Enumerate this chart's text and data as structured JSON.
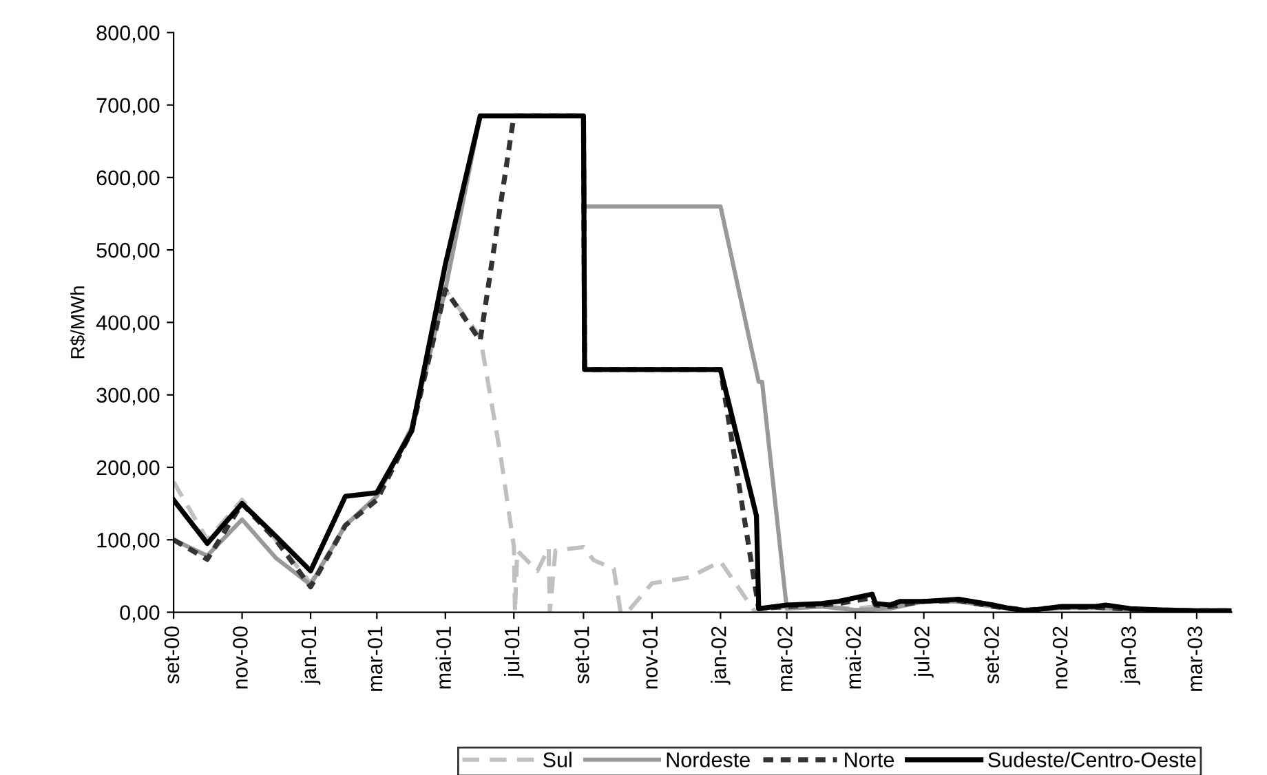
{
  "chart_data": {
    "type": "line",
    "ylabel": "R$/MWh",
    "xlim": [
      "2000-09-01",
      "2003-04-01"
    ],
    "ylim": [
      0,
      800
    ],
    "xticks": [
      {
        "value": "2000-09",
        "label": "set-00"
      },
      {
        "value": "2000-11",
        "label": "nov-00"
      },
      {
        "value": "2001-01",
        "label": "jan-01"
      },
      {
        "value": "2001-03",
        "label": "mar-01"
      },
      {
        "value": "2001-05",
        "label": "mai-01"
      },
      {
        "value": "2001-07",
        "label": "jul-01"
      },
      {
        "value": "2001-09",
        "label": "set-01"
      },
      {
        "value": "2001-11",
        "label": "nov-01"
      },
      {
        "value": "2002-01",
        "label": "jan-02"
      },
      {
        "value": "2002-03",
        "label": "mar-02"
      },
      {
        "value": "2002-05",
        "label": "mai-02"
      },
      {
        "value": "2002-07",
        "label": "jul-02"
      },
      {
        "value": "2002-09",
        "label": "set-02"
      },
      {
        "value": "2002-11",
        "label": "nov-02"
      },
      {
        "value": "2003-01",
        "label": "jan-03"
      },
      {
        "value": "2003-03",
        "label": "mar-03"
      }
    ],
    "yticks": [
      {
        "value": 0,
        "label": "0,00"
      },
      {
        "value": 100,
        "label": "100,00"
      },
      {
        "value": 200,
        "label": "200,00"
      },
      {
        "value": 300,
        "label": "300,00"
      },
      {
        "value": 400,
        "label": "400,00"
      },
      {
        "value": 500,
        "label": "500,00"
      },
      {
        "value": 600,
        "label": "600,00"
      },
      {
        "value": 700,
        "label": "700,00"
      },
      {
        "value": 800,
        "label": "800,00"
      }
    ],
    "grid": false,
    "legend": "bottom",
    "marker": "none",
    "series": [
      {
        "name": "Sul",
        "color": "#c0c0c0",
        "line_style": "dashed",
        "x": [
          "2000-09-01",
          "2000-10-01",
          "2000-11-01",
          "2000-12-01",
          "2001-01-01",
          "2001-02-01",
          "2001-03-01",
          "2001-04-01",
          "2001-05-01",
          "2001-06-01",
          "2001-06-19",
          "2001-07-01",
          "2001-07-02",
          "2001-07-04",
          "2001-07-22",
          "2001-08-01",
          "2001-08-02",
          "2001-08-07",
          "2001-09-01",
          "2001-09-10",
          "2001-09-28",
          "2001-10-04",
          "2001-10-10",
          "2001-11-01",
          "2001-12-04",
          "2002-01-01",
          "2002-02-01",
          "2002-03-01",
          "2002-04-01",
          "2002-05-01",
          "2002-06-01",
          "2002-07-01",
          "2002-08-01",
          "2002-09-01",
          "2002-10-01",
          "2002-11-01",
          "2002-12-01",
          "2003-01-01",
          "2003-02-01",
          "2003-03-01",
          "2003-04-01"
        ],
        "values": [
          180,
          100,
          155,
          100,
          40,
          120,
          160,
          250,
          445,
          380,
          218,
          91,
          0,
          85,
          57,
          89,
          0,
          85,
          90,
          72,
          60,
          0,
          0,
          40,
          48,
          70,
          0,
          8,
          8,
          5,
          10,
          15,
          15,
          8,
          3,
          6,
          6,
          4,
          3,
          2,
          2
        ]
      },
      {
        "name": "Nordeste",
        "color": "#999999",
        "line_style": "solid",
        "x": [
          "2000-09-01",
          "2000-10-01",
          "2000-11-01",
          "2000-12-01",
          "2001-01-01",
          "2001-02-01",
          "2001-03-01",
          "2001-04-01",
          "2001-05-01",
          "2001-06-01",
          "2001-09-01",
          "2001-09-02",
          "2002-01-01",
          "2002-02-04",
          "2002-02-07",
          "2002-03-01",
          "2002-04-01",
          "2002-05-01",
          "2002-06-01",
          "2002-07-01",
          "2002-08-01",
          "2002-09-01",
          "2002-10-01",
          "2002-11-01",
          "2002-12-01",
          "2003-01-01",
          "2003-02-01",
          "2003-03-01",
          "2003-04-01"
        ],
        "values": [
          100,
          78,
          128,
          75,
          38,
          120,
          160,
          255,
          445,
          685,
          685,
          560,
          560,
          318,
          318,
          5,
          8,
          3,
          5,
          15,
          15,
          8,
          3,
          6,
          6,
          4,
          3,
          2,
          2
        ]
      },
      {
        "name": "Norte",
        "color": "#333333",
        "line_style": "dotted",
        "x": [
          "2000-09-01",
          "2000-10-01",
          "2000-11-01",
          "2000-12-01",
          "2001-01-01",
          "2001-02-01",
          "2001-03-01",
          "2001-04-01",
          "2001-05-01",
          "2001-06-01",
          "2001-07-01",
          "2001-09-01",
          "2001-09-02",
          "2002-01-01",
          "2002-02-04",
          "2002-03-01",
          "2002-04-01",
          "2002-04-16",
          "2002-05-16",
          "2002-05-19",
          "2002-06-01",
          "2002-07-01",
          "2002-08-01",
          "2002-09-01",
          "2002-10-01",
          "2002-11-01",
          "2002-12-01",
          "2003-01-01",
          "2003-02-01",
          "2003-03-01",
          "2003-04-01"
        ],
        "values": [
          100,
          73,
          150,
          100,
          35,
          120,
          155,
          250,
          445,
          375,
          685,
          685,
          335,
          335,
          5,
          8,
          10,
          12,
          20,
          10,
          8,
          15,
          16,
          8,
          3,
          7,
          7,
          4,
          3,
          2,
          2
        ]
      },
      {
        "name": "Sudeste/Centro-Oeste",
        "color": "#000000",
        "line_style": "solid",
        "x": [
          "2000-09-01",
          "2000-10-01",
          "2000-11-01",
          "2000-12-01",
          "2001-01-01",
          "2001-02-01",
          "2001-03-01",
          "2001-04-01",
          "2001-05-01",
          "2001-06-01",
          "2001-09-01",
          "2001-09-02",
          "2002-01-01",
          "2002-02-02",
          "2002-02-04",
          "2002-03-01",
          "2002-04-01",
          "2002-04-16",
          "2002-05-16",
          "2002-05-19",
          "2002-06-01",
          "2002-06-10",
          "2002-07-01",
          "2002-08-01",
          "2002-09-01",
          "2002-09-16",
          "2002-10-01",
          "2002-11-01",
          "2002-12-01",
          "2002-12-10",
          "2003-01-01",
          "2003-02-01",
          "2003-03-01",
          "2003-04-01"
        ],
        "values": [
          155,
          95,
          150,
          105,
          57,
          160,
          165,
          250,
          480,
          685,
          685,
          335,
          335,
          133,
          5,
          10,
          12,
          15,
          25,
          12,
          10,
          15,
          15,
          18,
          10,
          5,
          2,
          8,
          8,
          10,
          5,
          3,
          2,
          2
        ]
      }
    ]
  }
}
